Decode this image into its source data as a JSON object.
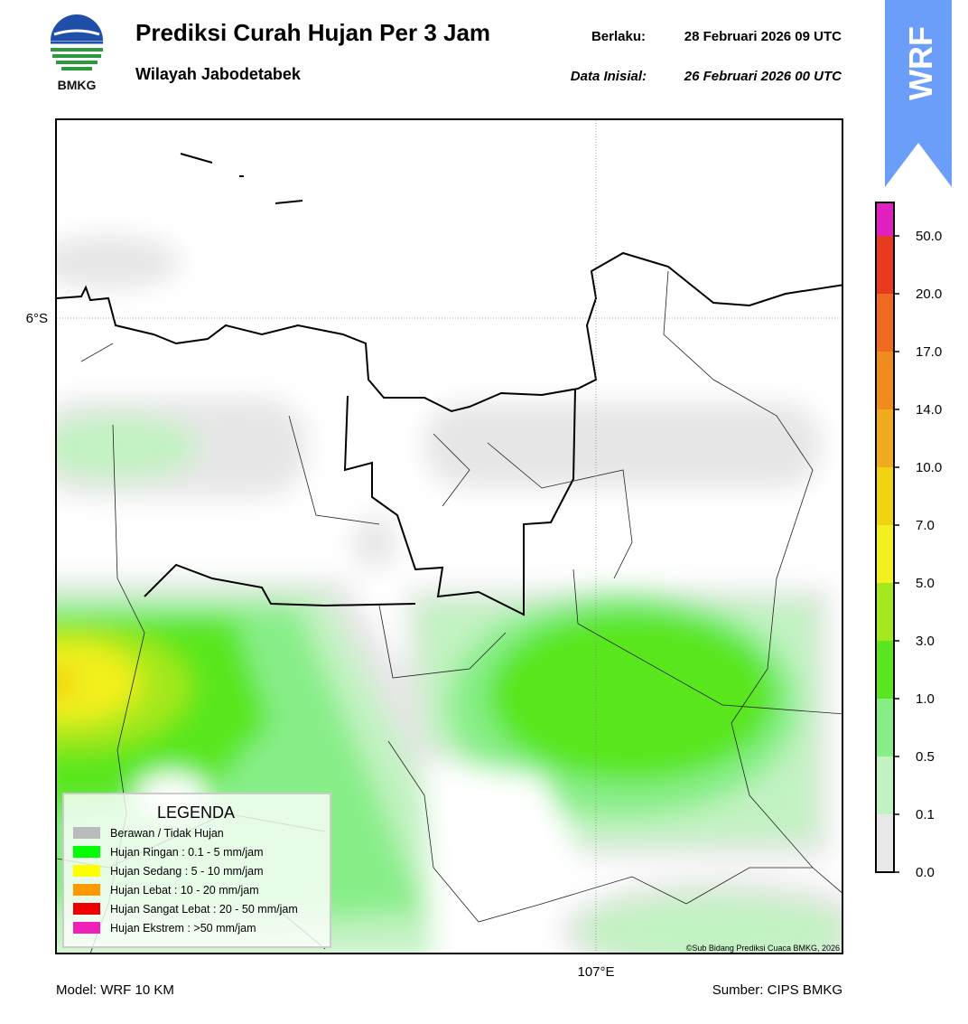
{
  "header": {
    "title": "Prediksi Curah Hujan Per 3 Jam",
    "subtitle": "Wilayah Jabodetabek",
    "valid_label": "Berlaku:",
    "valid_time": "28 Februari 2026 09 UTC",
    "init_label": "Data Inisial:",
    "init_time": "26 Februari 2026 00 UTC",
    "logo_text": "BMKG",
    "badge": "WRF"
  },
  "map": {
    "lat_label": "6°S",
    "lon_label": "107°E",
    "credit": "©Sub Bidang Prediksi Cuaca BMKG, 2026"
  },
  "legend": {
    "title": "LEGENDA",
    "items": [
      {
        "label": "Berawan / Tidak Hujan",
        "color": "#bbbbbb"
      },
      {
        "label": "Hujan Ringan : 0.1 - 5 mm/jam",
        "color": "#00ff00"
      },
      {
        "label": "Hujan Sedang : 5 - 10 mm/jam",
        "color": "#ffff00"
      },
      {
        "label": "Hujan Lebat : 10 - 20 mm/jam",
        "color": "#ff9900"
      },
      {
        "label": "Hujan Sangat Lebat : 20 - 50 mm/jam",
        "color": "#ee0000"
      },
      {
        "label": "Hujan Ekstrem : >50 mm/jam",
        "color": "#ee22bb"
      }
    ]
  },
  "colorbar": {
    "ticks": [
      "0.0",
      "0.1",
      "0.5",
      "1.0",
      "3.0",
      "5.0",
      "7.0",
      "10.0",
      "14.0",
      "17.0",
      "20.0",
      "50.0"
    ],
    "colors": [
      "#e8e8e8",
      "#c2f2c2",
      "#88ee88",
      "#5ae61e",
      "#a6e81e",
      "#f2f01e",
      "#f0d414",
      "#f0aa1e",
      "#f08c1e",
      "#ee6a1e",
      "#e83a1e",
      "#e020c0"
    ]
  },
  "footer": {
    "model": "Model: WRF 10 KM",
    "source": "Sumber: CIPS BMKG"
  }
}
